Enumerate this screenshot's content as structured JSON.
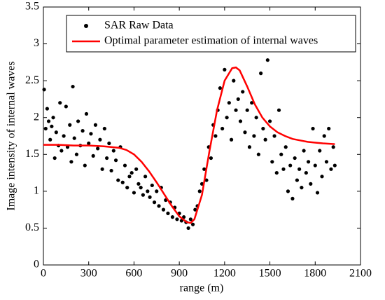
{
  "chart_data": {
    "type": "scatter",
    "xlabel": "range (m)",
    "ylabel": "Image intensity of internal waves",
    "xlim": [
      0,
      2100
    ],
    "xticks": [
      0,
      300,
      600,
      900,
      1200,
      1500,
      1800,
      2100
    ],
    "ylim": [
      0,
      3.5
    ],
    "yticks": [
      0,
      0.5,
      1,
      1.5,
      2,
      2.5,
      3,
      3.5
    ],
    "grid": false,
    "legend": "upper left",
    "series": [
      {
        "name": "SAR Raw Data",
        "type": "scatter",
        "color": "#000000",
        "x": [
          5,
          15,
          25,
          35,
          45,
          55,
          65,
          75,
          85,
          100,
          110,
          120,
          135,
          150,
          160,
          175,
          185,
          195,
          205,
          220,
          230,
          245,
          260,
          275,
          285,
          300,
          315,
          330,
          345,
          360,
          375,
          390,
          405,
          420,
          435,
          450,
          465,
          480,
          495,
          510,
          525,
          540,
          555,
          570,
          585,
          600,
          615,
          630,
          645,
          660,
          675,
          690,
          705,
          720,
          735,
          750,
          765,
          780,
          795,
          810,
          825,
          840,
          855,
          870,
          885,
          900,
          915,
          930,
          945,
          960,
          975,
          990,
          1005,
          1020,
          1035,
          1050,
          1065,
          1080,
          1095,
          1110,
          1125,
          1140,
          1155,
          1170,
          1185,
          1200,
          1215,
          1230,
          1245,
          1260,
          1275,
          1290,
          1305,
          1320,
          1335,
          1350,
          1365,
          1380,
          1395,
          1410,
          1425,
          1440,
          1455,
          1470,
          1485,
          1500,
          1515,
          1530,
          1545,
          1560,
          1575,
          1590,
          1605,
          1620,
          1635,
          1650,
          1665,
          1680,
          1695,
          1710,
          1725,
          1740,
          1755,
          1770,
          1785,
          1800,
          1815,
          1830,
          1845,
          1860,
          1875,
          1890,
          1905,
          1920,
          1930
        ],
        "values": [
          2.38,
          1.85,
          2.12,
          1.95,
          1.7,
          1.88,
          2.0,
          1.45,
          1.8,
          1.62,
          2.2,
          1.55,
          1.75,
          2.15,
          1.6,
          1.9,
          1.4,
          2.42,
          1.72,
          1.5,
          1.95,
          1.62,
          1.82,
          1.35,
          2.05,
          1.65,
          1.78,
          1.48,
          1.9,
          1.58,
          1.7,
          1.3,
          1.85,
          1.45,
          1.65,
          1.28,
          1.55,
          1.42,
          1.15,
          1.6,
          1.12,
          1.35,
          1.05,
          1.2,
          1.25,
          0.98,
          1.3,
          1.1,
          1.05,
          0.95,
          1.2,
          1.0,
          0.92,
          1.08,
          0.85,
          1.0,
          0.8,
          1.05,
          0.75,
          0.88,
          0.7,
          0.85,
          0.65,
          0.78,
          0.62,
          0.7,
          0.6,
          0.65,
          0.58,
          0.5,
          0.62,
          0.55,
          0.75,
          0.8,
          1.0,
          1.1,
          1.3,
          1.15,
          1.6,
          1.45,
          1.9,
          1.75,
          2.1,
          2.4,
          1.85,
          2.65,
          2.0,
          2.2,
          1.7,
          2.5,
          2.1,
          2.25,
          1.95,
          2.35,
          1.8,
          2.1,
          1.6,
          2.2,
          1.75,
          2.0,
          1.5,
          2.6,
          1.85,
          1.7,
          2.78,
          1.95,
          1.4,
          1.75,
          1.25,
          2.1,
          1.5,
          1.3,
          1.6,
          1.0,
          1.35,
          0.9,
          1.45,
          1.15,
          1.3,
          1.05,
          1.55,
          1.25,
          1.4,
          1.1,
          1.85,
          1.35,
          0.98,
          1.55,
          1.2,
          1.75,
          1.4,
          1.85,
          1.3,
          1.6,
          1.35
        ]
      },
      {
        "name": "Optimal parameter estimation of internal waves",
        "type": "line",
        "color": "#ff0000",
        "x": [
          0,
          100,
          200,
          300,
          400,
          500,
          550,
          600,
          650,
          700,
          750,
          800,
          850,
          900,
          950,
          975,
          1000,
          1050,
          1100,
          1150,
          1200,
          1250,
          1275,
          1300,
          1350,
          1400,
          1450,
          1500,
          1550,
          1600,
          1650,
          1700,
          1750,
          1800,
          1850,
          1930
        ],
        "values": [
          1.63,
          1.63,
          1.62,
          1.62,
          1.61,
          1.59,
          1.56,
          1.5,
          1.4,
          1.27,
          1.12,
          0.96,
          0.8,
          0.66,
          0.58,
          0.57,
          0.62,
          0.95,
          1.55,
          2.1,
          2.5,
          2.67,
          2.68,
          2.64,
          2.42,
          2.18,
          2.0,
          1.88,
          1.8,
          1.75,
          1.71,
          1.69,
          1.67,
          1.66,
          1.65,
          1.64
        ]
      }
    ]
  }
}
